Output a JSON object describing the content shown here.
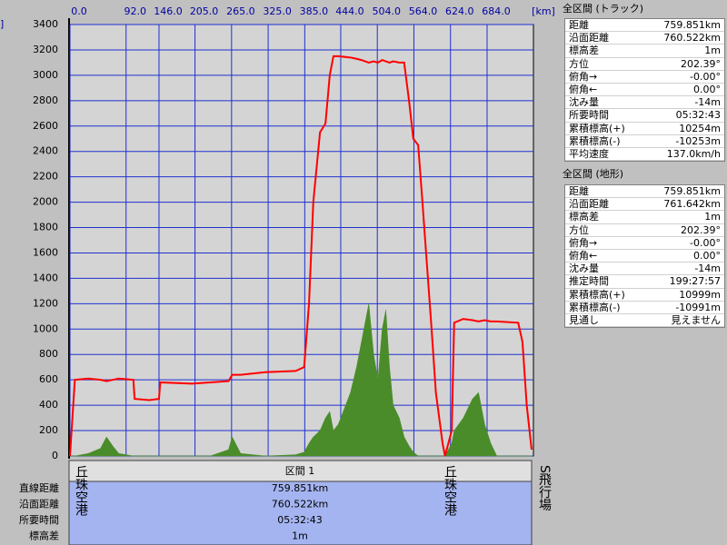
{
  "chart_data": {
    "type": "line",
    "x_unit": "[km]",
    "y_unit": "]",
    "x": [
      0,
      8,
      30,
      50,
      60,
      70,
      80,
      104,
      106,
      130,
      146,
      148,
      200,
      230,
      260,
      266,
      280,
      320,
      370,
      384,
      392,
      399,
      410,
      419,
      426,
      432,
      440,
      460,
      470,
      478,
      490,
      498,
      505,
      512,
      518,
      524,
      530,
      540,
      548,
      556,
      563,
      571,
      578,
      593,
      600,
      611,
      615,
      626,
      630,
      645,
      660,
      670,
      680,
      690,
      700,
      735,
      742,
      749,
      757
    ],
    "series": [
      {
        "color": "#ff0000",
        "values": [
          0,
          600,
          610,
          600,
          590,
          600,
          610,
          600,
          450,
          440,
          450,
          580,
          570,
          580,
          590,
          640,
          640,
          660,
          670,
          700,
          1200,
          2000,
          2550,
          2620,
          3000,
          3150,
          3150,
          3140,
          3130,
          3120,
          3100,
          3110,
          3100,
          3120,
          3110,
          3100,
          3110,
          3100,
          3100,
          2800,
          2500,
          2450,
          2000,
          1000,
          500,
          100,
          0,
          200,
          1050,
          1080,
          1070,
          1060,
          1070,
          1060,
          1060,
          1050,
          900,
          400,
          50
        ]
      },
      {
        "color": "#4a8c2a",
        "values": [
          0,
          0,
          20,
          60,
          150,
          80,
          20,
          0,
          0,
          0,
          0,
          0,
          0,
          0,
          50,
          150,
          20,
          0,
          10,
          30,
          100,
          150,
          200,
          300,
          350,
          200,
          250,
          500,
          700,
          900,
          1200,
          800,
          600,
          1000,
          1150,
          700,
          400,
          300,
          150,
          80,
          30,
          0,
          0,
          0,
          0,
          0,
          0,
          100,
          200,
          300,
          450,
          500,
          250,
          100,
          0,
          0,
          0,
          0,
          0
        ]
      }
    ],
    "xlim": [
      0,
      760
    ],
    "xticks": [
      {
        "value": 0,
        "label": "0.0"
      },
      {
        "value": 92,
        "label": "92.0"
      },
      {
        "value": 146,
        "label": "146.0"
      },
      {
        "value": 205,
        "label": "205.0"
      },
      {
        "value": 265,
        "label": "265.0"
      },
      {
        "value": 325,
        "label": "325.0"
      },
      {
        "value": 385,
        "label": "385.0"
      },
      {
        "value": 444,
        "label": "444.0"
      },
      {
        "value": 504,
        "label": "504.0"
      },
      {
        "value": 564,
        "label": "564.0"
      },
      {
        "value": 624,
        "label": "624.0"
      },
      {
        "value": 684,
        "label": "684.0"
      }
    ],
    "ylim": [
      0,
      3400
    ],
    "yticks": [
      0,
      200,
      400,
      600,
      800,
      1000,
      1200,
      1400,
      1600,
      1800,
      2000,
      2200,
      2400,
      2600,
      2800,
      3000,
      3200,
      3400
    ],
    "grid": true
  },
  "panels": [
    {
      "title": "全区間 (トラック)",
      "rows": [
        [
          "距離",
          "759.851km"
        ],
        [
          "沿面距離",
          "760.522km"
        ],
        [
          "標高差",
          "1m"
        ],
        [
          "方位",
          "202.39°"
        ],
        [
          "俯角→",
          "-0.00°"
        ],
        [
          "俯角←",
          "0.00°"
        ],
        [
          "沈み量",
          "-14m"
        ],
        [
          "所要時間",
          "05:32:43"
        ],
        [
          "累積標高(+)",
          "10254m"
        ],
        [
          "累積標高(-)",
          "-10253m"
        ],
        [
          "平均速度",
          "137.0km/h"
        ]
      ]
    },
    {
      "title": "全区間 (地形)",
      "rows": [
        [
          "距離",
          "759.851km"
        ],
        [
          "沿面距離",
          "761.642km"
        ],
        [
          "標高差",
          "1m"
        ],
        [
          "方位",
          "202.39°"
        ],
        [
          "俯角→",
          "-0.00°"
        ],
        [
          "俯角←",
          "0.00°"
        ],
        [
          "沈み量",
          "-14m"
        ],
        [
          "推定時間",
          "199:27:57"
        ],
        [
          "累積標高(+)",
          "10999m"
        ],
        [
          "累積標高(-)",
          "-10991m"
        ],
        [
          "見通し",
          "見えません"
        ]
      ]
    }
  ],
  "section": {
    "title": "区間 1",
    "labels": [
      "直線距離",
      "沿面距離",
      "所要時間",
      "標高差"
    ],
    "values": [
      "759.851km",
      "760.522km",
      "05:32:43",
      "1m"
    ],
    "start": "丘珠空港",
    "waypoint": "丘珠空港",
    "end": "S飛行場"
  }
}
